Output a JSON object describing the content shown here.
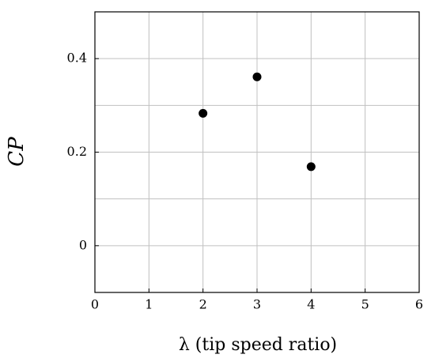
{
  "chart_data": {
    "type": "scatter",
    "x_label": "λ (tip speed ratio)",
    "y_label": "CP",
    "x": [
      2,
      3,
      4
    ],
    "values": [
      0.283,
      0.361,
      0.169
    ],
    "color": "#000000",
    "xlim": [
      0,
      6
    ],
    "xticks": [
      0,
      1,
      2,
      3,
      4,
      5,
      6
    ],
    "ylim": [
      -0.1,
      0.5
    ],
    "yticks": [
      0,
      0.2,
      0.4
    ],
    "y_minor_grid": [
      0.1,
      0.3
    ],
    "grid": true
  }
}
